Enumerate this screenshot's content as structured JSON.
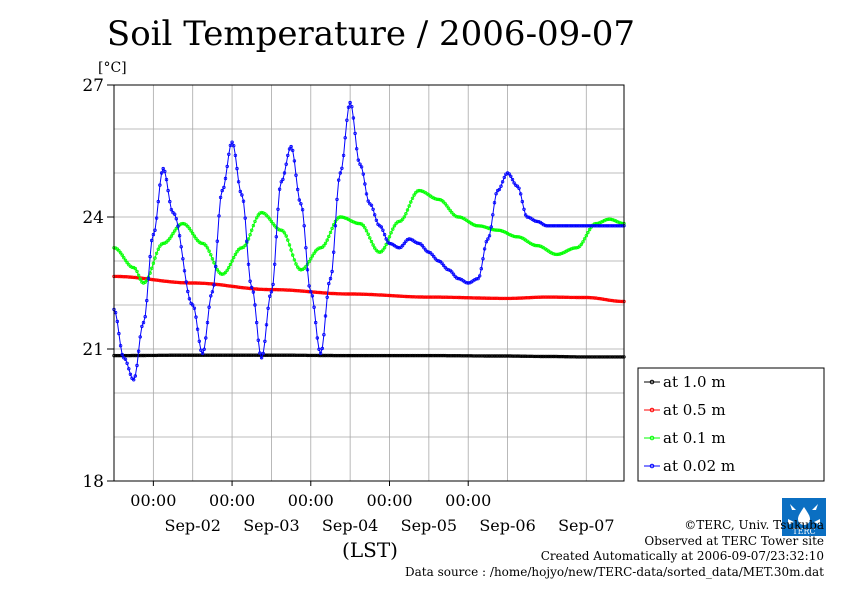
{
  "chart_data": {
    "type": "line",
    "title": "Soil Temperature / 2006-09-07",
    "ylabel": "[°C]",
    "xlabel": "(LST)",
    "ylim": [
      18,
      27
    ],
    "yticks": [
      18,
      21,
      24,
      27
    ],
    "xlim": [
      "2006-09-01 12:00",
      "2006-09-07 23:30"
    ],
    "time_tick_label": "00:00",
    "date_labels": [
      "Sep-02",
      "Sep-03",
      "Sep-04",
      "Sep-05",
      "Sep-06",
      "Sep-07"
    ],
    "grid": true,
    "legend_position": "right",
    "x_units": "hours since 2006-09-01 12:00",
    "series": [
      {
        "name": "at 1.0 m",
        "color": "#000000",
        "x": [
          0,
          24,
          48,
          72,
          96,
          120,
          132,
          144,
          155.5
        ],
        "values": [
          20.85,
          20.86,
          20.86,
          20.85,
          20.85,
          20.84,
          20.83,
          20.82,
          20.82
        ]
      },
      {
        "name": "at 0.5 m",
        "color": "#ff0000",
        "x": [
          0,
          24,
          48,
          72,
          96,
          120,
          132,
          144,
          155.5
        ],
        "values": [
          22.65,
          22.5,
          22.35,
          22.25,
          22.18,
          22.15,
          22.18,
          22.17,
          22.08
        ]
      },
      {
        "name": "at 0.1 m",
        "color": "#00ff00",
        "x": [
          0,
          6,
          9,
          15,
          21,
          27,
          33,
          39,
          45,
          51,
          57,
          63,
          69,
          75,
          81,
          87,
          93,
          99,
          105,
          111,
          117,
          123,
          129,
          135,
          141,
          147,
          151,
          155.5
        ],
        "values": [
          23.3,
          22.85,
          22.5,
          23.4,
          23.85,
          23.4,
          22.7,
          23.3,
          24.1,
          23.7,
          22.8,
          23.3,
          24.0,
          23.85,
          23.2,
          23.9,
          24.6,
          24.4,
          24.0,
          23.8,
          23.7,
          23.55,
          23.35,
          23.15,
          23.3,
          23.85,
          23.95,
          23.85
        ]
      },
      {
        "name": "at 0.02 m",
        "color": "#0000ff",
        "x": [
          0,
          3,
          6,
          9,
          12,
          15,
          18,
          24,
          27,
          30,
          33,
          36,
          39,
          42,
          45,
          48,
          51,
          54,
          57,
          60,
          63,
          66,
          69,
          72,
          75,
          78,
          81,
          84,
          87,
          90,
          93,
          96,
          99,
          102,
          105,
          108,
          111,
          114,
          117,
          120,
          123,
          126,
          129,
          132,
          135,
          138,
          141,
          144,
          147,
          150,
          153,
          155.5
        ],
        "values": [
          21.9,
          20.8,
          20.3,
          21.6,
          23.6,
          25.1,
          24.1,
          22.0,
          20.9,
          22.3,
          24.6,
          25.7,
          24.5,
          22.4,
          20.8,
          22.3,
          24.8,
          25.6,
          24.3,
          22.3,
          20.9,
          22.6,
          25.0,
          26.6,
          25.2,
          24.3,
          23.8,
          23.4,
          23.3,
          23.5,
          23.4,
          23.2,
          23.0,
          22.8,
          22.6,
          22.5,
          22.6,
          23.5,
          24.6,
          25.0,
          24.7,
          24.0,
          23.9,
          23.8,
          23.8,
          23.8,
          23.8,
          23.8,
          23.8,
          23.8,
          23.8,
          23.8
        ]
      }
    ]
  },
  "credits": {
    "copyright": "©TERC, Univ. Tsukuba",
    "observed": "Observed at TERC Tower site",
    "created": "Created Automatically at 2006-09-07/23:32:10",
    "source": "Data source : /home/hojyo/new/TERC-data/sorted_data/MET.30m.dat"
  },
  "logo": {
    "text": "TERC",
    "color": "#0b6fc2"
  }
}
